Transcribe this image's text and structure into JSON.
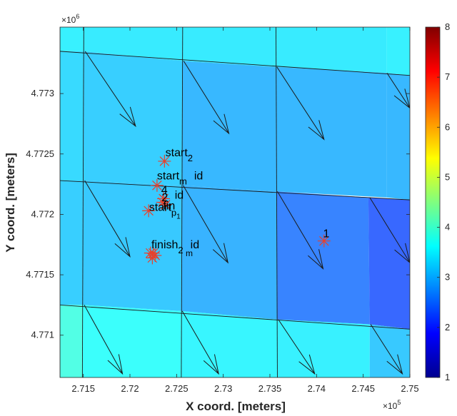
{
  "chart_data": {
    "type": "scatter",
    "xlabel": "X coord. [meters]",
    "ylabel": "Y coord. [meters]",
    "x_multiplier": "×10",
    "x_multiplier_exp": "5",
    "y_multiplier": "×10",
    "y_multiplier_exp": "6",
    "xlim": [
      2.7125,
      2.75
    ],
    "ylim": [
      4.77065,
      4.77355
    ],
    "x_ticks": [
      {
        "value": 2.715,
        "label": "2.715"
      },
      {
        "value": 2.72,
        "label": "2.72"
      },
      {
        "value": 2.725,
        "label": "2.725"
      },
      {
        "value": 2.73,
        "label": "2.73"
      },
      {
        "value": 2.735,
        "label": "2.735"
      },
      {
        "value": 2.74,
        "label": "2.74"
      },
      {
        "value": 2.745,
        "label": "2.745"
      },
      {
        "value": 2.75,
        "label": "2.75"
      }
    ],
    "y_ticks": [
      {
        "value": 4.771,
        "label": "4.771"
      },
      {
        "value": 4.7715,
        "label": "4.7715"
      },
      {
        "value": 4.772,
        "label": "4.772"
      },
      {
        "value": 4.7725,
        "label": "4.7725"
      },
      {
        "value": 4.773,
        "label": "4.773"
      }
    ],
    "colorbar": {
      "min": 1,
      "max": 8,
      "ticks": [
        "1",
        "2",
        "3",
        "4",
        "5",
        "6",
        "7",
        "8"
      ]
    },
    "grid_x_lines": [
      [
        2.7125,
        4.77355,
        2.7125,
        4.77065
      ],
      [
        2.71505,
        4.77355,
        2.7149,
        4.77065
      ],
      [
        2.72565,
        4.77355,
        2.7255,
        4.77065
      ],
      [
        2.73565,
        4.77355,
        2.7358,
        4.77065
      ]
    ],
    "grid_y_lines": [
      [
        2.7125,
        4.77335,
        2.75,
        4.77315
      ],
      [
        2.7125,
        4.77228,
        2.75,
        4.77212
      ],
      [
        2.7125,
        4.77125,
        2.75,
        4.77105
      ]
    ],
    "cells": [
      {
        "pts": [
          [
            2.7125,
            4.77355
          ],
          [
            2.71505,
            4.77355
          ],
          [
            2.71505,
            4.77335
          ],
          [
            2.7125,
            4.77335
          ]
        ],
        "value": 3.5
      },
      {
        "pts": [
          [
            2.71505,
            4.77355
          ],
          [
            2.72565,
            4.77355
          ],
          [
            2.72565,
            4.77327
          ],
          [
            2.71505,
            4.77335
          ]
        ],
        "value": 3.45
      },
      {
        "pts": [
          [
            2.72565,
            4.77355
          ],
          [
            2.73565,
            4.77355
          ],
          [
            2.73565,
            4.77322
          ],
          [
            2.72565,
            4.77327
          ]
        ],
        "value": 3.45
      },
      {
        "pts": [
          [
            2.73565,
            4.77355
          ],
          [
            2.7475,
            4.77355
          ],
          [
            2.7475,
            4.77317
          ],
          [
            2.73565,
            4.77322
          ]
        ],
        "value": 3.45
      },
      {
        "pts": [
          [
            2.7475,
            4.77355
          ],
          [
            2.75,
            4.77355
          ],
          [
            2.75,
            4.77315
          ],
          [
            2.7475,
            4.77317
          ]
        ],
        "value": 3.5
      },
      {
        "pts": [
          [
            2.7125,
            4.77335
          ],
          [
            2.71505,
            4.77335
          ],
          [
            2.71502,
            4.77228
          ],
          [
            2.7125,
            4.77228
          ]
        ],
        "value": 3.3
      },
      {
        "pts": [
          [
            2.71505,
            4.77335
          ],
          [
            2.72565,
            4.77327
          ],
          [
            2.7256,
            4.77224
          ],
          [
            2.71502,
            4.77228
          ]
        ],
        "value": 3.2
      },
      {
        "pts": [
          [
            2.72565,
            4.77327
          ],
          [
            2.73565,
            4.77322
          ],
          [
            2.7357,
            4.77219
          ],
          [
            2.7256,
            4.77224
          ]
        ],
        "value": 3.0
      },
      {
        "pts": [
          [
            2.73565,
            4.77322
          ],
          [
            2.7475,
            4.77317
          ],
          [
            2.7475,
            4.77214
          ],
          [
            2.7357,
            4.77219
          ]
        ],
        "value": 3.0
      },
      {
        "pts": [
          [
            2.7475,
            4.77317
          ],
          [
            2.75,
            4.77315
          ],
          [
            2.75,
            4.77212
          ],
          [
            2.7475,
            4.77214
          ]
        ],
        "value": 3.0
      },
      {
        "pts": [
          [
            2.7125,
            4.77228
          ],
          [
            2.71502,
            4.77228
          ],
          [
            2.71495,
            4.77125
          ],
          [
            2.7125,
            4.77125
          ]
        ],
        "value": 3.2
      },
      {
        "pts": [
          [
            2.71502,
            4.77228
          ],
          [
            2.7256,
            4.77224
          ],
          [
            2.7255,
            4.7712
          ],
          [
            2.71495,
            4.77125
          ]
        ],
        "value": 3.15
      },
      {
        "pts": [
          [
            2.7256,
            4.77224
          ],
          [
            2.7357,
            4.77219
          ],
          [
            2.7358,
            4.77113
          ],
          [
            2.7255,
            4.7712
          ]
        ],
        "value": 2.95
      },
      {
        "pts": [
          [
            2.7357,
            4.77219
          ],
          [
            2.74555,
            4.77214
          ],
          [
            2.7457,
            4.77109
          ],
          [
            2.7358,
            4.77113
          ]
        ],
        "value": 2.55
      },
      {
        "pts": [
          [
            2.74555,
            4.77214
          ],
          [
            2.75,
            4.77212
          ],
          [
            2.75,
            4.77105
          ],
          [
            2.7457,
            4.77109
          ]
        ],
        "value": 2.3
      },
      {
        "pts": [
          [
            2.7125,
            4.77125
          ],
          [
            2.71495,
            4.77125
          ],
          [
            2.7149,
            4.77065
          ],
          [
            2.7125,
            4.77065
          ]
        ],
        "value": 3.85
      },
      {
        "pts": [
          [
            2.71495,
            4.77125
          ],
          [
            2.7255,
            4.7712
          ],
          [
            2.7255,
            4.77065
          ],
          [
            2.7149,
            4.77065
          ]
        ],
        "value": 3.65
      },
      {
        "pts": [
          [
            2.7255,
            4.7712
          ],
          [
            2.7358,
            4.77113
          ],
          [
            2.7358,
            4.77065
          ],
          [
            2.7255,
            4.77065
          ]
        ],
        "value": 3.55
      },
      {
        "pts": [
          [
            2.7358,
            4.77113
          ],
          [
            2.7457,
            4.77109
          ],
          [
            2.7457,
            4.77065
          ],
          [
            2.7358,
            4.77065
          ]
        ],
        "value": 3.5
      },
      {
        "pts": [
          [
            2.7457,
            4.77109
          ],
          [
            2.75,
            4.77105
          ],
          [
            2.75,
            4.77065
          ],
          [
            2.7457,
            4.77065
          ]
        ],
        "value": 3.15
      }
    ],
    "arrows": [
      {
        "x0": 2.7152,
        "y0": 4.77335,
        "x1": 2.7206,
        "y1": 4.77273
      },
      {
        "x0": 2.72575,
        "y0": 4.77327,
        "x1": 2.7306,
        "y1": 4.77267
      },
      {
        "x0": 2.73575,
        "y0": 4.77322,
        "x1": 2.7408,
        "y1": 4.77262
      },
      {
        "x0": 2.74755,
        "y0": 4.77317,
        "x1": 2.75,
        "y1": 4.77288
      },
      {
        "x0": 2.71515,
        "y0": 4.77228,
        "x1": 2.72,
        "y1": 4.77165
      },
      {
        "x0": 2.7257,
        "y0": 4.77224,
        "x1": 2.7305,
        "y1": 4.7716
      },
      {
        "x0": 2.7358,
        "y0": 4.77219,
        "x1": 2.7407,
        "y1": 4.77155
      },
      {
        "x0": 2.7457,
        "y0": 4.77214,
        "x1": 2.75,
        "y1": 4.7716
      },
      {
        "x0": 2.7151,
        "y0": 4.77125,
        "x1": 2.7192,
        "y1": 4.77068
      },
      {
        "x0": 2.7256,
        "y0": 4.7712,
        "x1": 2.7295,
        "y1": 4.77068
      },
      {
        "x0": 2.7359,
        "y0": 4.77113,
        "x1": 2.7398,
        "y1": 4.77068
      },
      {
        "x0": 2.7458,
        "y0": 4.77109,
        "x1": 2.7492,
        "y1": 4.77068
      }
    ],
    "points": [
      {
        "x": 2.7237,
        "y": 4.77244
      },
      {
        "x": 2.7229,
        "y": 4.77224
      },
      {
        "x": 2.7236,
        "y": 4.77213
      },
      {
        "x": 2.7238,
        "y": 4.77208
      },
      {
        "x": 2.7235,
        "y": 4.7721
      },
      {
        "x": 2.722,
        "y": 4.77203
      },
      {
        "x": 2.7225,
        "y": 4.77168
      },
      {
        "x": 2.7222,
        "y": 4.77168
      },
      {
        "x": 2.7227,
        "y": 4.77166
      },
      {
        "x": 2.7224,
        "y": 4.77164
      },
      {
        "x": 2.7408,
        "y": 4.77178
      }
    ],
    "annotations": [
      {
        "text": "start",
        "sub": "2",
        "x": 2.7238,
        "y": 4.77248
      },
      {
        "text": "start",
        "sub": "m",
        "extra": "id",
        "x": 2.7229,
        "y": 4.77229
      },
      {
        "text": "4",
        "x": 2.72335,
        "y": 4.77217
      },
      {
        "text": "2",
        "x": 2.7234,
        "y": 4.77211
      },
      {
        "text": "id",
        "x": 2.7248,
        "y": 4.77213
      },
      {
        "text": "fin",
        "x": 2.72355,
        "y": 4.77204
      },
      {
        "text": "start",
        "sub": "p",
        "sub2": "1",
        "x": 2.72205,
        "y": 4.77203
      },
      {
        "text": "finish",
        "sub": "2",
        "extra": "id",
        "extra_sub": "m",
        "x": 2.7223,
        "y": 4.77172
      },
      {
        "text": "1",
        "x": 2.7407,
        "y": 4.77181
      }
    ]
  }
}
